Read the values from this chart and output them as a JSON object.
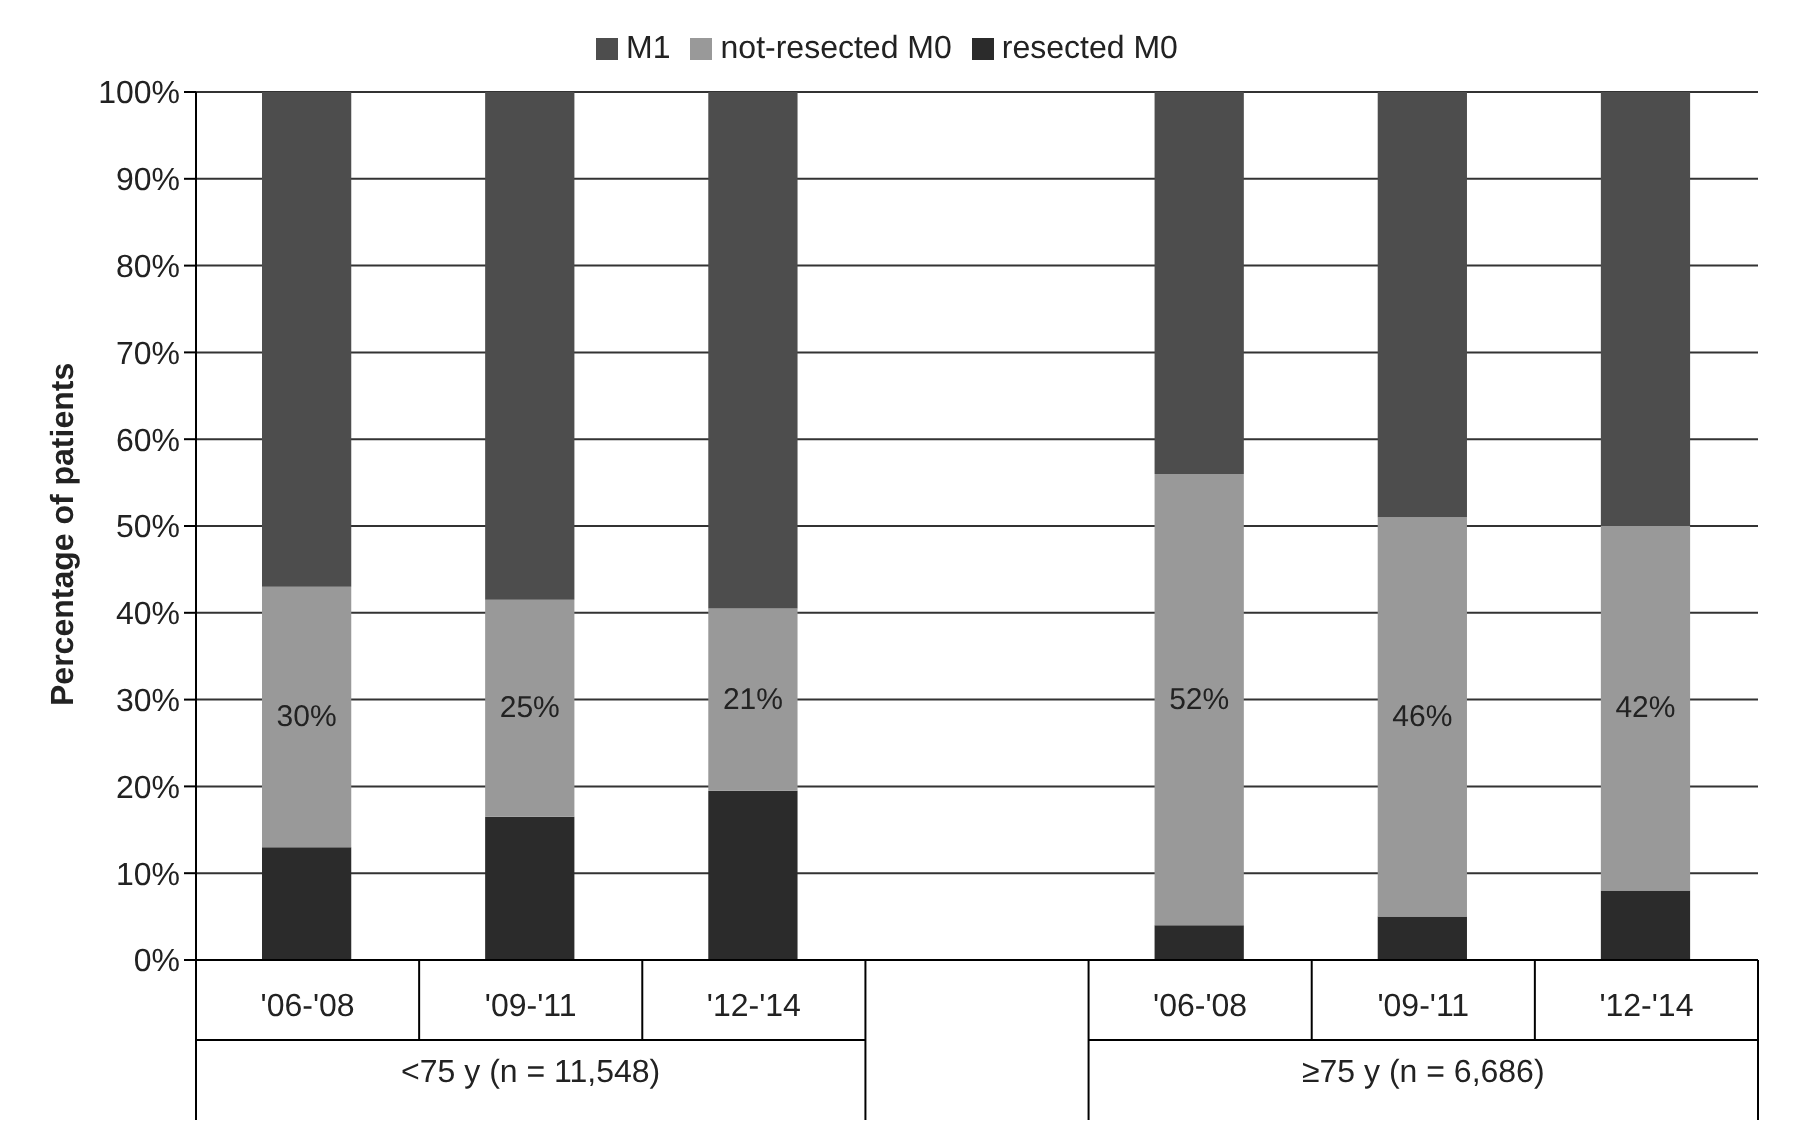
{
  "chart_data": {
    "type": "bar",
    "stacked": true,
    "ylabel": "Percentage of patients",
    "categories": [
      "'06-'08",
      "'09-'11",
      "'12-'14",
      null,
      "'06-'08",
      "'09-'11",
      "'12-'14"
    ],
    "series": [
      {
        "name": "resected M0",
        "color": "#2b2b2b",
        "values": [
          13,
          16.5,
          19.5,
          null,
          4,
          5,
          8
        ]
      },
      {
        "name": "not-resected M0",
        "color": "#999999",
        "values": [
          30,
          25,
          21,
          null,
          52,
          46,
          42
        ],
        "value_labels": [
          "30%",
          "25%",
          "21%",
          null,
          "52%",
          "46%",
          "42%"
        ]
      },
      {
        "name": "M1",
        "color": "#4d4d4d",
        "values": [
          57,
          58.5,
          59.5,
          null,
          44,
          49,
          50
        ]
      }
    ],
    "ylim": [
      0,
      100
    ],
    "yticks": [
      {
        "value": 0,
        "label": "0%"
      },
      {
        "value": 10,
        "label": "10%"
      },
      {
        "value": 20,
        "label": "20%"
      },
      {
        "value": 30,
        "label": "30%"
      },
      {
        "value": 40,
        "label": "40%"
      },
      {
        "value": 50,
        "label": "50%"
      },
      {
        "value": 60,
        "label": "60%"
      },
      {
        "value": 70,
        "label": "70%"
      },
      {
        "value": 80,
        "label": "80%"
      },
      {
        "value": 90,
        "label": "90%"
      },
      {
        "value": 100,
        "label": "100%"
      }
    ],
    "grid": "y",
    "legend": "top",
    "annotations": [
      "<75 y (n = 11,548)",
      "≥75 y (n = 6,686)"
    ]
  }
}
